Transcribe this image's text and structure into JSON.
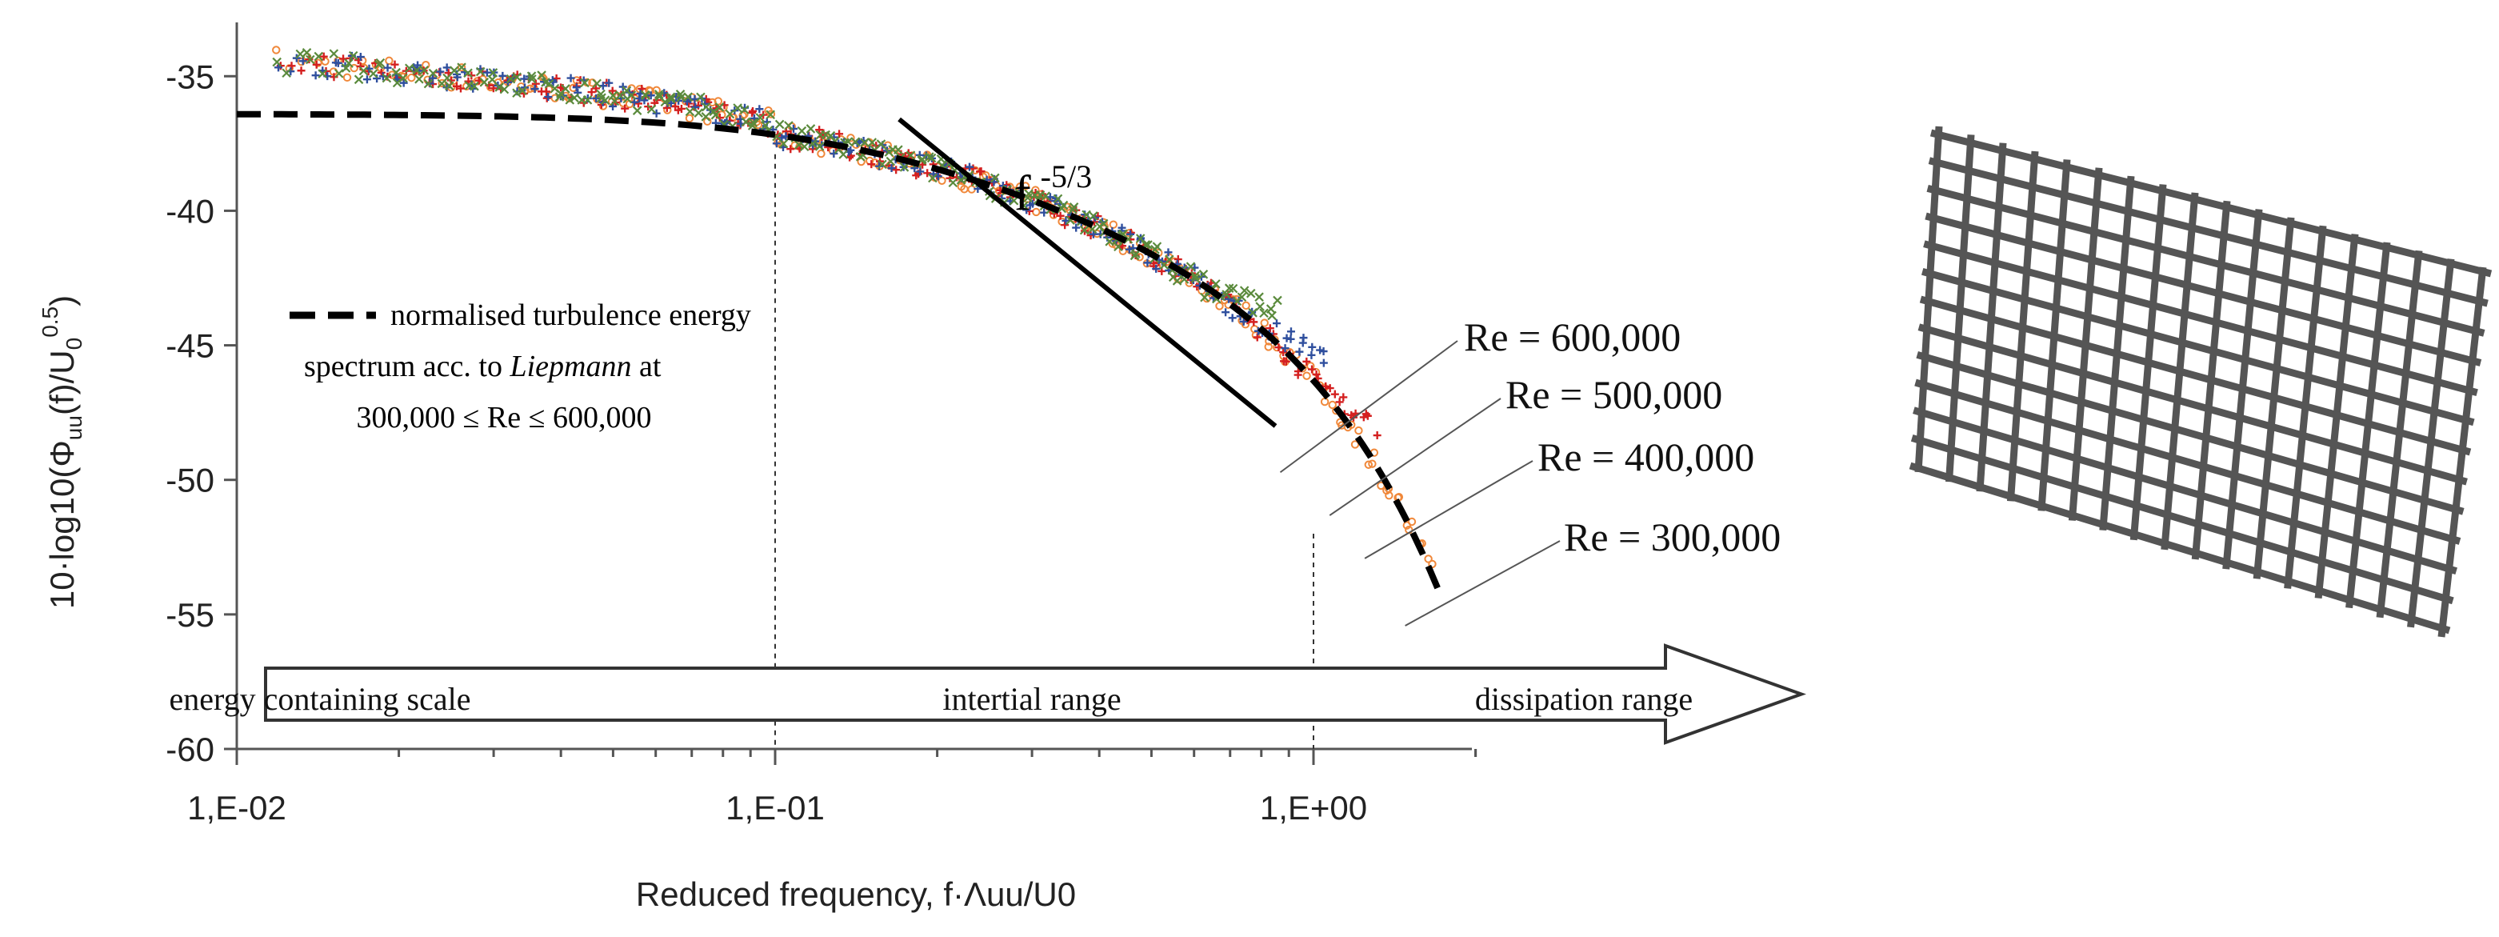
{
  "chart_data": {
    "type": "scatter",
    "xscale": "log",
    "xlim": [
      0.01,
      2
    ],
    "ylim": [
      -60,
      -33
    ],
    "y_ticks": [
      -35,
      -40,
      -45,
      -50,
      -55,
      -60
    ],
    "x_ticks": [
      0.01,
      0.1,
      1
    ],
    "y_tick_labels": [
      "-35",
      "-40",
      "-45",
      "-50",
      "-55",
      "-60"
    ],
    "x_tick_labels": [
      "1,E-02",
      "1,E-01",
      "1,E+00"
    ],
    "ylabel_parts": {
      "prefix": "10·log10(Φ",
      "sub": "uu",
      "mid": "(f)/U",
      "sub2": "0",
      "sup": "0.5",
      "suffix": ")"
    },
    "xlabel": "Reduced frequency, f·Λuu/U0",
    "series": [
      {
        "name": "Re = 600,000",
        "color": "#5a8a3c",
        "marker": "x",
        "fmax": 0.85
      },
      {
        "name": "Re = 500,000",
        "color": "#2f4f9e",
        "marker": "+",
        "fmax": 1.05
      },
      {
        "name": "Re = 400,000",
        "color": "#d42020",
        "marker": "+",
        "fmax": 1.3
      },
      {
        "name": "Re = 300,000",
        "color": "#f0883a",
        "marker": "o",
        "fmax": 1.65
      }
    ],
    "model_curve": {
      "name": "normalised turbulence energy spectrum acc. to Liepmann at 300,000 ≤ Re ≤ 600,000",
      "style": "dashed",
      "color": "#000000",
      "plateau_db": -36.4,
      "corner_f": 0.125,
      "x_range": [
        0.01,
        1.7
      ]
    },
    "legend": {
      "line1": "normalised turbulence energy",
      "line2_prefix": "spectrum acc. to ",
      "line2_italic": "Liepmann",
      "line2_suffix": " at",
      "line3": "300,000 ≤ Re ≤ 600,000"
    },
    "slope_annotation": {
      "base": "f",
      "exponent": "-5/3",
      "from": [
        0.17,
        -36.6
      ],
      "to": [
        0.85,
        -48
      ]
    },
    "range_labels": [
      "energy containing scale",
      "intertial range",
      "dissipation range"
    ],
    "range_boundaries": [
      0.1,
      1.0
    ],
    "re_labels": [
      "Re = 600,000",
      "Re = 500,000",
      "Re = 400,000",
      "Re = 300,000"
    ],
    "leader_targets": [
      {
        "f": 0.85,
        "db": -49.6
      },
      {
        "f": 1.05,
        "db": -51.2
      },
      {
        "f": 1.22,
        "db": -52.8
      },
      {
        "f": 1.45,
        "db": -55.3
      }
    ],
    "inset": "grid-icon"
  },
  "colors": {
    "axis": "#555555",
    "text": "#222222",
    "grid_inset": "#555555"
  }
}
